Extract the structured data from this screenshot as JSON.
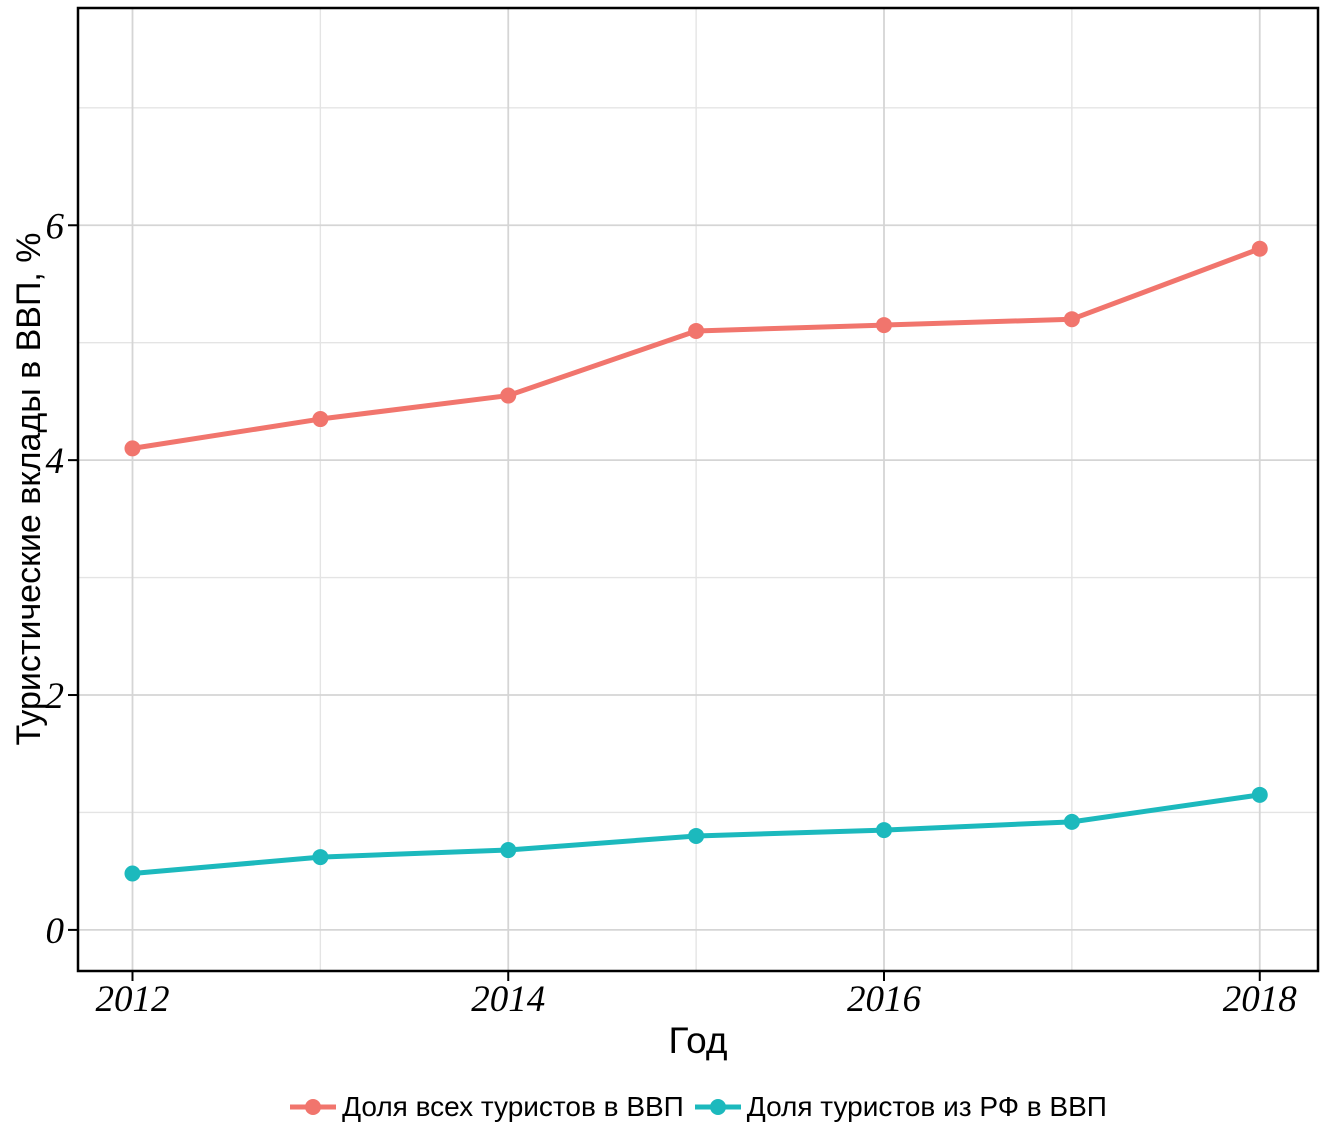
{
  "chart_data": {
    "type": "line",
    "title": "",
    "xlabel": "Год",
    "ylabel": "Туристические вклады в ВВП, %",
    "x": [
      2012,
      2013,
      2014,
      2015,
      2016,
      2017,
      2018
    ],
    "series": [
      {
        "name": "Доля всех туристов в ВВП",
        "color": "#F1756D",
        "values": [
          4.1,
          4.35,
          4.55,
          5.1,
          5.15,
          5.2,
          5.8
        ]
      },
      {
        "name": "Доля туристов из РФ в ВВП",
        "color": "#1CB9BD",
        "values": [
          0.48,
          0.62,
          0.68,
          0.8,
          0.85,
          0.92,
          1.15
        ]
      }
    ],
    "x_ticks": [
      2012,
      2014,
      2016,
      2018
    ],
    "x_minor_gridlines": [
      2013,
      2015,
      2017
    ],
    "y_ticks": [
      0,
      2,
      4,
      6
    ],
    "y_minor_gridlines": [
      1,
      3,
      5,
      7
    ],
    "xlim": [
      2011.71,
      2018.31
    ],
    "ylim": [
      -0.35,
      7.85
    ],
    "grid": "major+minor",
    "legend_position": "bottom",
    "style": {
      "background": "#ffffff",
      "panel_border": "#000000",
      "grid_major": "#d5d5d5",
      "grid_minor": "#e4e4e4",
      "tick_color": "#000000",
      "text_color": "#000000"
    }
  }
}
